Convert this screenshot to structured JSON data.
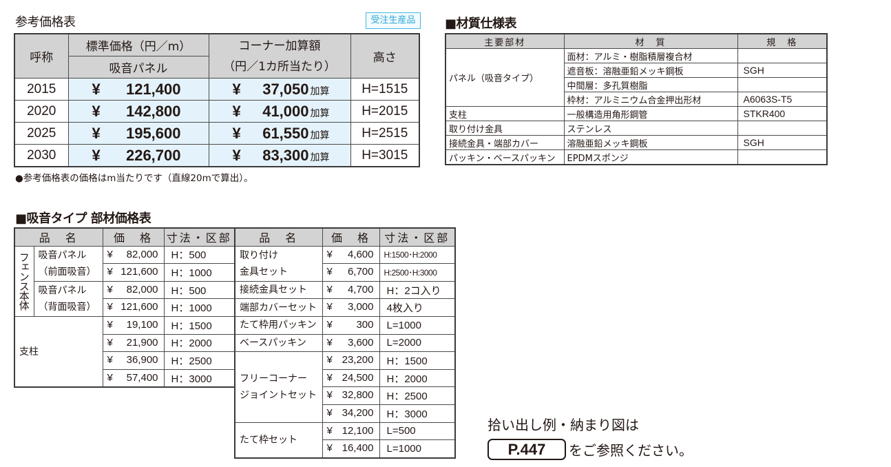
{
  "price_table": {
    "title": "参考価格表",
    "badge": "受注生産品",
    "headers": {
      "nominal": "呼称",
      "std_price": "標準価格（円／m）",
      "panel": "吸音パネル",
      "corner_line1": "コーナー加算額",
      "corner_line2": "（円／1カ所当たり）",
      "height": "高さ"
    },
    "currency": "¥",
    "add_label": "加算",
    "rows": [
      {
        "nominal": "2015",
        "price": "121,400",
        "corner": "37,050",
        "height": "H=1515"
      },
      {
        "nominal": "2020",
        "price": "142,800",
        "corner": "41,000",
        "height": "H=2015"
      },
      {
        "nominal": "2025",
        "price": "195,600",
        "corner": "61,550",
        "height": "H=2515"
      },
      {
        "nominal": "2030",
        "price": "226,700",
        "corner": "83,300",
        "height": "H=3015"
      }
    ],
    "note": "●参考価格表の価格はm当たりです（直線20mで算出）。"
  },
  "material_table": {
    "title": "■材質仕様表",
    "headers": [
      "主要部材",
      "材　質",
      "規　格"
    ],
    "groups": [
      {
        "part": "パネル（吸音タイプ）",
        "rows": [
          {
            "material": "面材：アルミ・樹脂積層複合材",
            "spec": ""
          },
          {
            "material": "遮音板：溶融亜鉛メッキ鋼板",
            "spec": "SGH"
          },
          {
            "material": "中間層：多孔質樹脂",
            "spec": ""
          },
          {
            "material": "枠材：アルミニウム合金押出形材",
            "spec": "A6063S-T5"
          }
        ]
      },
      {
        "part": "支柱",
        "rows": [
          {
            "material": "一般構造用角形鋼管",
            "spec": "STKR400"
          }
        ]
      },
      {
        "part": "取り付け金具",
        "rows": [
          {
            "material": "ステンレス",
            "spec": ""
          }
        ]
      },
      {
        "part": "接続金具・端部カバー",
        "rows": [
          {
            "material": "溶融亜鉛メッキ鋼板",
            "spec": "SGH"
          }
        ]
      },
      {
        "part": "パッキン・ベースパッキン",
        "rows": [
          {
            "material": "EPDMスポンジ",
            "spec": ""
          }
        ]
      }
    ]
  },
  "parts_table": {
    "title": "■吸音タイプ 部材価格表",
    "headers": [
      "品　名",
      "価　格",
      "寸法・区部"
    ],
    "currency": "¥",
    "left": [
      {
        "group": "フェンス本体",
        "name": "吸音パネル\n（前面吸音）",
        "variants": [
          {
            "price": "82,000",
            "size": "H：500"
          },
          {
            "price": "121,600",
            "size": "H：1000"
          }
        ]
      },
      {
        "group": "フェンス本体",
        "name": "吸音パネル\n（背面吸音）",
        "variants": [
          {
            "price": "82,000",
            "size": "H：500"
          },
          {
            "price": "121,600",
            "size": "H：1000"
          }
        ]
      },
      {
        "group": "",
        "name": "支柱",
        "variants": [
          {
            "price": "19,100",
            "size": "H：1500"
          },
          {
            "price": "21,900",
            "size": "H：2000"
          },
          {
            "price": "36,900",
            "size": "H：2500"
          },
          {
            "price": "57,400",
            "size": "H：3000"
          }
        ]
      }
    ],
    "right": [
      {
        "name": "取り付け\n金具セット",
        "variants": [
          {
            "price": "4,600",
            "size": "H:1500･H:2000"
          },
          {
            "price": "6,700",
            "size": "H:2500･H:3000"
          }
        ]
      },
      {
        "name": "接続金具セット",
        "variants": [
          {
            "price": "4,700",
            "size": "H：2コ入り"
          }
        ]
      },
      {
        "name": "端部カバーセット",
        "variants": [
          {
            "price": "3,000",
            "size": "4枚入り"
          }
        ]
      },
      {
        "name": "たて枠用パッキン",
        "variants": [
          {
            "price": "300",
            "size": "L=1000"
          }
        ]
      },
      {
        "name": "ベースパッキン",
        "variants": [
          {
            "price": "3,600",
            "size": "L=2000"
          }
        ]
      },
      {
        "name": "フリーコーナー\nジョイントセット",
        "variants": [
          {
            "price": "23,200",
            "size": "H：1500"
          },
          {
            "price": "24,500",
            "size": "H：2000"
          },
          {
            "price": "32,800",
            "size": "H：2500"
          },
          {
            "price": "34,200",
            "size": "H：3000"
          }
        ]
      },
      {
        "name": "たて枠セット",
        "variants": [
          {
            "price": "12,100",
            "size": "L=500"
          },
          {
            "price": "16,400",
            "size": "L=1000"
          }
        ]
      }
    ]
  },
  "reference": {
    "line1": "拾い出し例・納まり図は",
    "page": "P.447",
    "line2": "をご参照ください。"
  }
}
